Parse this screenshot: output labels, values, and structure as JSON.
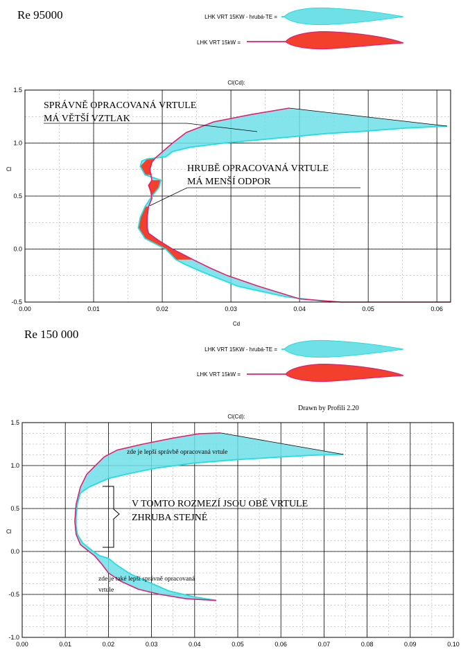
{
  "chart_data": [
    {
      "type": "line",
      "re_label": "Re 95000",
      "top_label": "Cl(Cd):",
      "xlabel": "Cd",
      "ylabel": "Cl",
      "xlim": [
        0,
        0.062
      ],
      "ylim": [
        -0.5,
        1.5
      ],
      "xticks": [
        "0.00",
        "0.01",
        "0.02",
        "0.03",
        "0.04",
        "0.05",
        "0.06"
      ],
      "yticks": [
        "-0.5",
        "0.0",
        "0.5",
        "1.0",
        "1.5"
      ],
      "grid": true,
      "legend_placement": "top-center",
      "legend": [
        {
          "label": "LHK  VRT 15KW - hrubá-TE =",
          "color": "#22dde0"
        },
        {
          "label": "LHK VRT 15kW =",
          "color": "#e0206e"
        }
      ],
      "series": [
        {
          "name": "LHK  VRT 15KW - hrubá-TE =",
          "color": "#22dde0",
          "points": [
            [
              0.0445,
              -0.5
            ],
            [
              0.038,
              -0.45
            ],
            [
              0.031,
              -0.35
            ],
            [
              0.026,
              -0.22
            ],
            [
              0.0235,
              -0.15
            ],
            [
              0.022,
              -0.1
            ],
            [
              0.0205,
              0.0
            ],
            [
              0.019,
              0.05
            ],
            [
              0.0175,
              0.1
            ],
            [
              0.0165,
              0.2
            ],
            [
              0.0168,
              0.3
            ],
            [
              0.0175,
              0.4
            ],
            [
              0.0185,
              0.5
            ],
            [
              0.0195,
              0.58
            ],
            [
              0.0198,
              0.65
            ],
            [
              0.0175,
              0.7
            ],
            [
              0.0168,
              0.78
            ],
            [
              0.017,
              0.83
            ],
            [
              0.0178,
              0.85
            ],
            [
              0.0205,
              0.87
            ],
            [
              0.0215,
              0.92
            ],
            [
              0.024,
              0.96
            ],
            [
              0.029,
              1.0
            ],
            [
              0.034,
              1.03
            ],
            [
              0.039,
              1.06
            ],
            [
              0.044,
              1.09
            ],
            [
              0.049,
              1.11
            ],
            [
              0.055,
              1.14
            ],
            [
              0.0615,
              1.16
            ]
          ]
        },
        {
          "name": "LHK VRT 15kW =",
          "color": "#e0206e",
          "points": [
            [
              0.062,
              -0.5
            ],
            [
              0.054,
              -0.5
            ],
            [
              0.046,
              -0.5
            ],
            [
              0.04,
              -0.47
            ],
            [
              0.034,
              -0.35
            ],
            [
              0.0295,
              -0.25
            ],
            [
              0.027,
              -0.18
            ],
            [
              0.0245,
              -0.1
            ],
            [
              0.023,
              -0.05
            ],
            [
              0.0215,
              0.0
            ],
            [
              0.0195,
              0.08
            ],
            [
              0.018,
              0.15
            ],
            [
              0.0178,
              0.2
            ],
            [
              0.0178,
              0.3
            ],
            [
              0.018,
              0.4
            ],
            [
              0.0185,
              0.48
            ],
            [
              0.0183,
              0.55
            ],
            [
              0.018,
              0.6
            ],
            [
              0.0185,
              0.65
            ],
            [
              0.0182,
              0.75
            ],
            [
              0.0185,
              0.82
            ],
            [
              0.019,
              0.86
            ],
            [
              0.0215,
              1.0
            ],
            [
              0.0235,
              1.1
            ],
            [
              0.0275,
              1.2
            ],
            [
              0.033,
              1.27
            ],
            [
              0.0385,
              1.33
            ]
          ]
        }
      ],
      "annotations": [
        "SPRÁVNĚ OPRACOVANÁ VRTULE",
        "MÁ VĚTŠÍ VZTLAK",
        "HRUBĚ OPRACOVANÁ VRTULE",
        "MÁ MENŠÍ ODPOR"
      ]
    },
    {
      "type": "line",
      "re_label": "Re 150 000",
      "top_label": "Cl(Cd):",
      "xlabel": "",
      "ylabel": "Cl",
      "xlim": [
        0,
        0.1
      ],
      "ylim": [
        -1.0,
        1.5
      ],
      "xticks": [
        "0.00",
        "0.01",
        "0.02",
        "0.03",
        "0.04",
        "0.05",
        "0.06",
        "0.07",
        "0.08",
        "0.09",
        "0.10"
      ],
      "yticks": [
        "-1.0",
        "-0.5",
        "0.0",
        "0.5",
        "1.0",
        "1.5"
      ],
      "grid": true,
      "legend_placement": "top-center",
      "legend": [
        {
          "label": "LHK  VRT 15KW - hrubá-TE =",
          "color": "#22dde0"
        },
        {
          "label": "LHK VRT 15kW =",
          "color": "#e0206e"
        }
      ],
      "series": [
        {
          "name": "LHK  VRT 15KW - hrubá-TE =",
          "color": "#22dde0",
          "points": [
            [
              0.045,
              -0.57
            ],
            [
              0.04,
              -0.53
            ],
            [
              0.034,
              -0.46
            ],
            [
              0.029,
              -0.35
            ],
            [
              0.025,
              -0.26
            ],
            [
              0.022,
              -0.16
            ],
            [
              0.02,
              -0.08
            ],
            [
              0.018,
              -0.05
            ],
            [
              0.0165,
              0.0
            ],
            [
              0.014,
              0.1
            ],
            [
              0.0128,
              0.2
            ],
            [
              0.0125,
              0.3
            ],
            [
              0.0125,
              0.4
            ],
            [
              0.0128,
              0.55
            ],
            [
              0.0135,
              0.68
            ],
            [
              0.0155,
              0.75
            ],
            [
              0.02,
              0.85
            ],
            [
              0.025,
              0.91
            ],
            [
              0.031,
              0.97
            ],
            [
              0.04,
              1.03
            ],
            [
              0.05,
              1.07
            ],
            [
              0.06,
              1.1
            ],
            [
              0.067,
              1.12
            ],
            [
              0.0745,
              1.13
            ]
          ]
        },
        {
          "name": "LHK VRT 15kW =",
          "color": "#e0206e",
          "points": [
            [
              0.045,
              -0.57
            ],
            [
              0.038,
              -0.55
            ],
            [
              0.032,
              -0.5
            ],
            [
              0.027,
              -0.44
            ],
            [
              0.023,
              -0.35
            ],
            [
              0.02,
              -0.25
            ],
            [
              0.0185,
              -0.15
            ],
            [
              0.0168,
              -0.05
            ],
            [
              0.0155,
              0.0
            ],
            [
              0.0135,
              0.08
            ],
            [
              0.0125,
              0.2
            ],
            [
              0.0122,
              0.35
            ],
            [
              0.0125,
              0.55
            ],
            [
              0.0135,
              0.75
            ],
            [
              0.015,
              0.9
            ],
            [
              0.017,
              1.0
            ],
            [
              0.019,
              1.1
            ],
            [
              0.022,
              1.18
            ],
            [
              0.028,
              1.25
            ],
            [
              0.035,
              1.32
            ],
            [
              0.041,
              1.37
            ],
            [
              0.046,
              1.38
            ]
          ]
        }
      ],
      "annotations": [
        "zde je lepší správbě opracovaná vrtule",
        "V TOMTO ROZMEZÍ JSOU OBĚ VRTULE",
        "ZHRUBA STEJNÉ",
        "zde je také lepší správně opracovaná",
        "vrtule"
      ],
      "credit": "Drawn by Profili 2.20"
    }
  ]
}
